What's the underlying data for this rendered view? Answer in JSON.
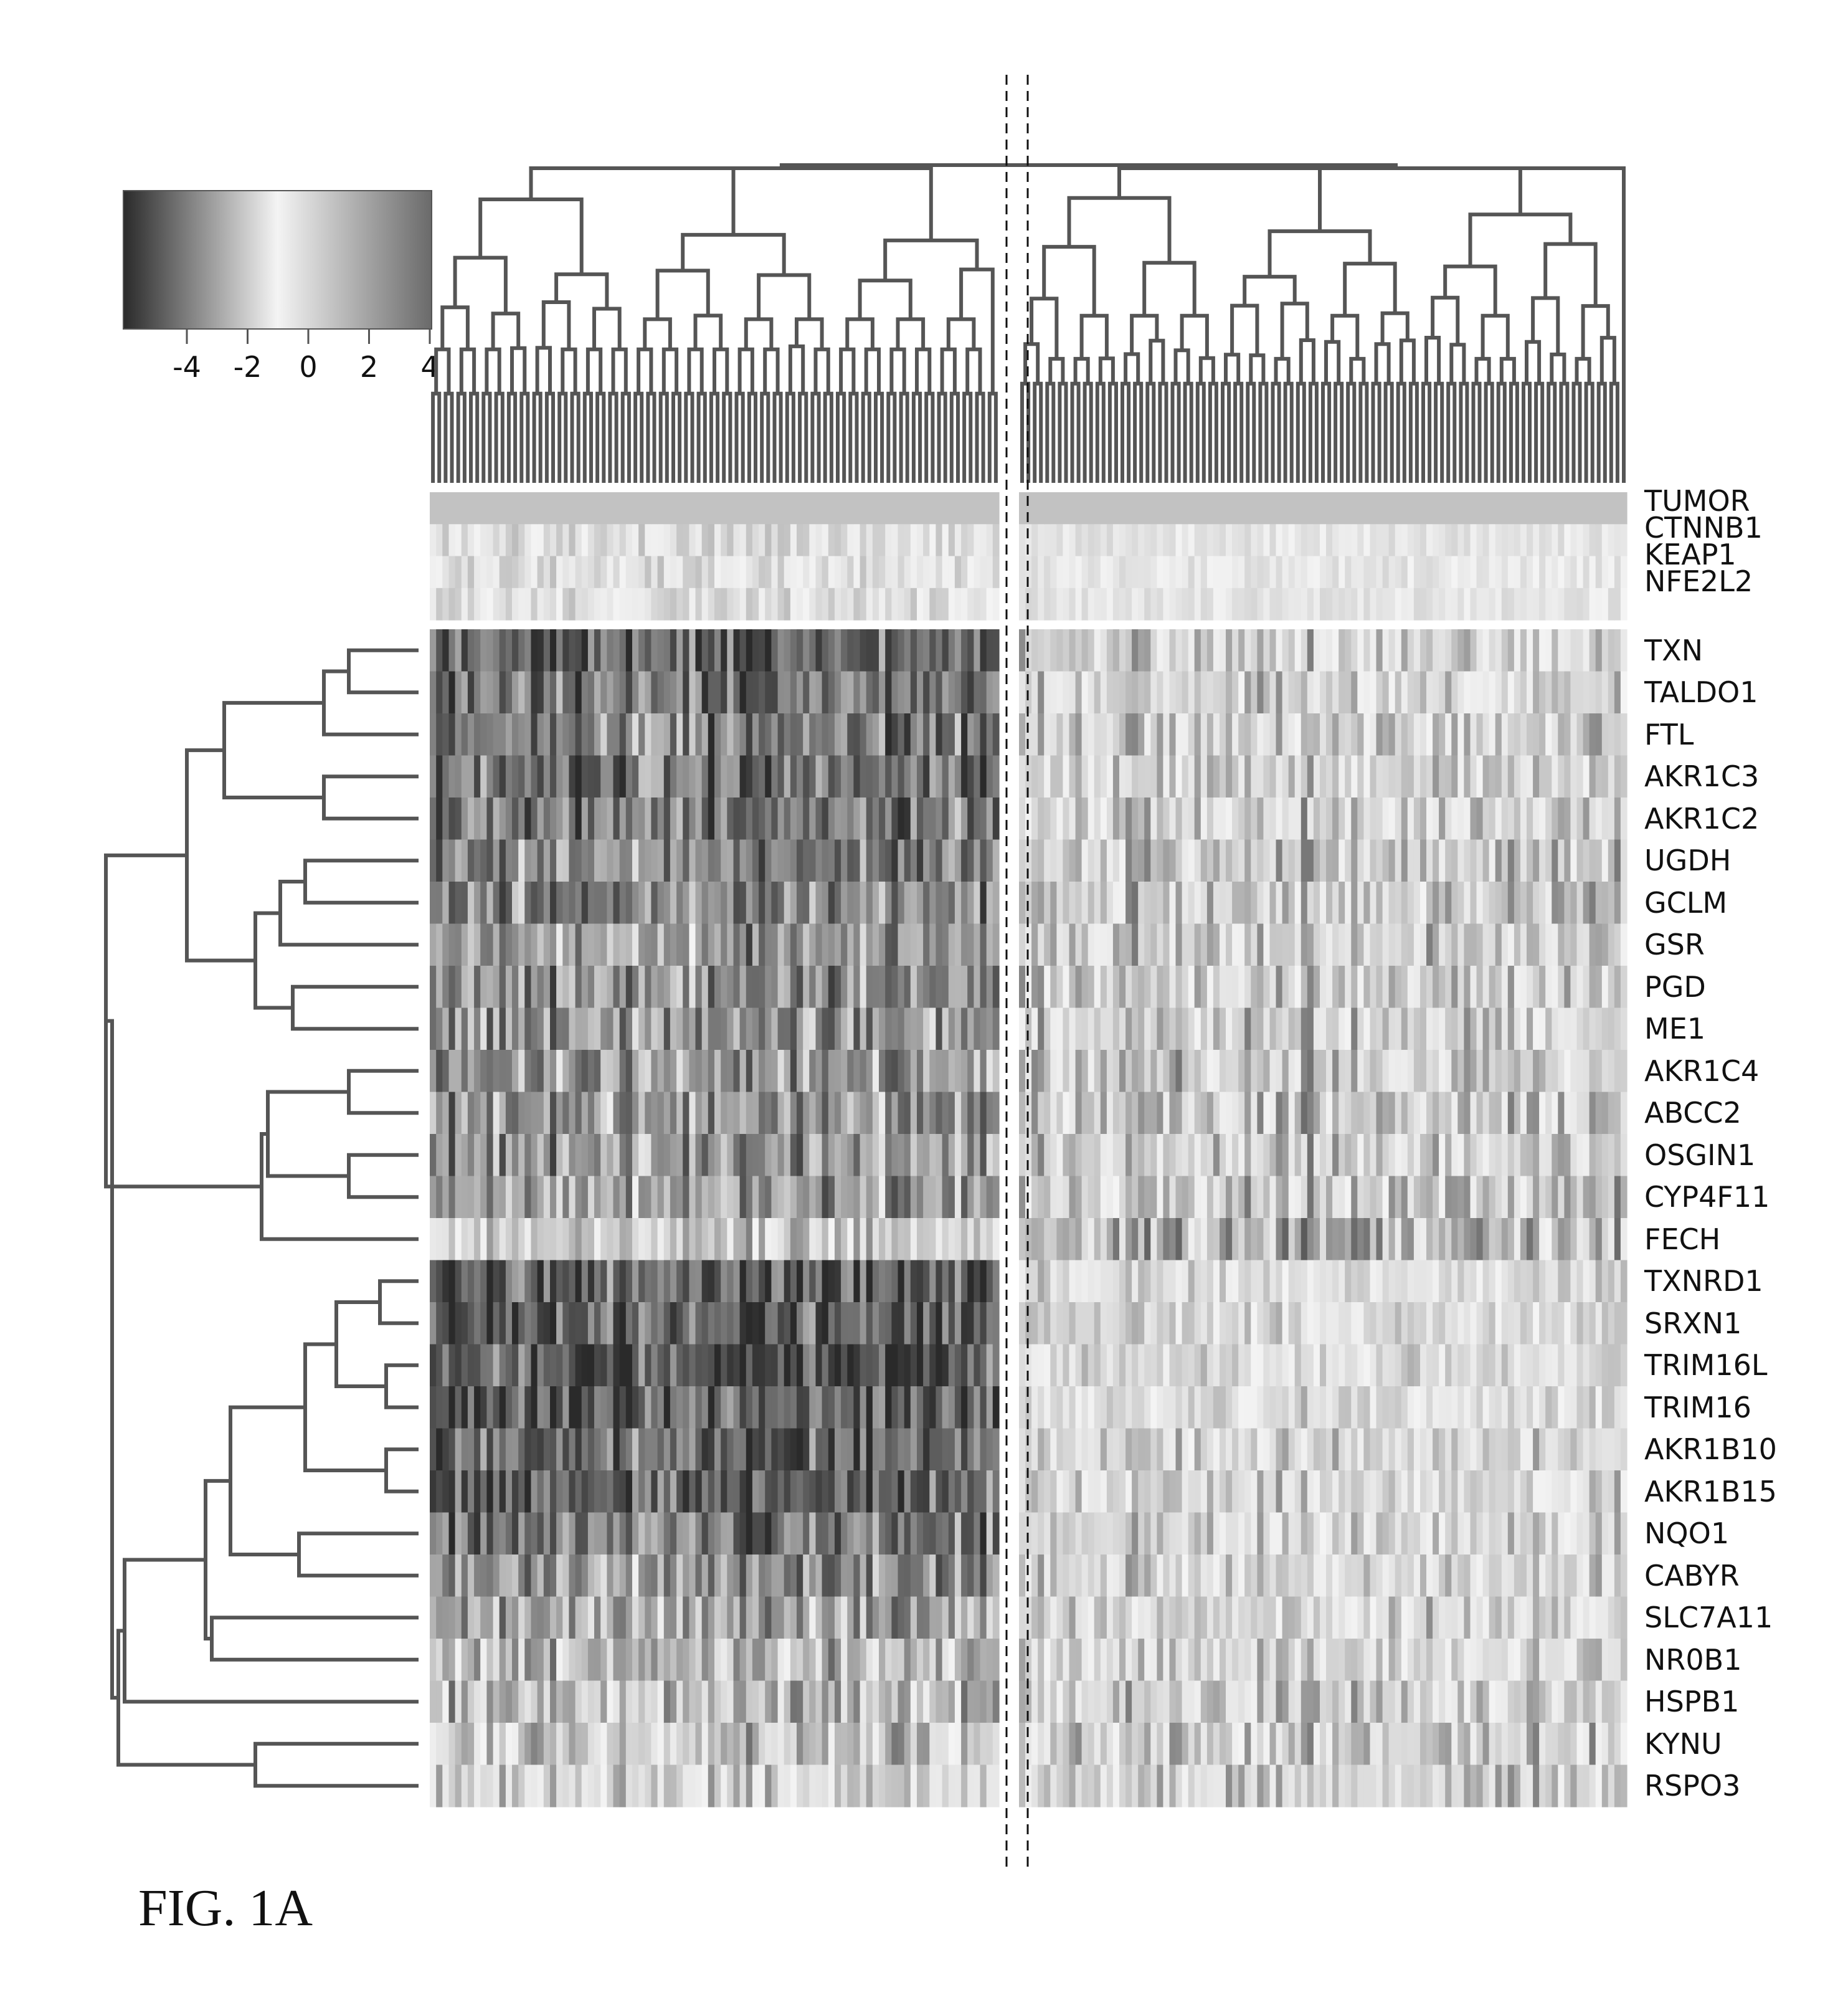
{
  "figure_label": "FIG. 1A",
  "chart_data": {
    "type": "heatmap",
    "title": "",
    "color_scale": {
      "ticks": [
        "-4",
        "-2",
        "0",
        "2",
        "4"
      ],
      "min": -4,
      "max": 4,
      "low_color": "#2a2a2a",
      "mid_color": "#f4f4f4",
      "high_color": "#6a6a6a"
    },
    "annotation_tracks": [
      "TUMOR",
      "CTNNB1",
      "KEAP1",
      "NFE2L2"
    ],
    "genes": [
      "TXN",
      "TALDO1",
      "FTL",
      "AKR1C3",
      "AKR1C2",
      "UGDH",
      "GCLM",
      "GSR",
      "PGD",
      "ME1",
      "AKR1C4",
      "ABCC2",
      "OSGIN1",
      "CYP4F11",
      "FECH",
      "TXNRD1",
      "SRXN1",
      "TRIM16L",
      "TRIM16",
      "AKR1B10",
      "AKR1B15",
      "NQO1",
      "CABYR",
      "SLC7A11",
      "NR0B1",
      "HSPB1",
      "KYNU",
      "RSPO3"
    ],
    "sample_clusters": [
      {
        "label": "",
        "n_samples": 90,
        "mean_level": [
          -2.8,
          -2.6,
          -2.4,
          -2.5,
          -2.5,
          -2.2,
          -2.1,
          -1.9,
          -2.0,
          -1.9,
          -1.8,
          -1.8,
          -1.9,
          -1.8,
          -0.6,
          -3.0,
          -3.0,
          -3.1,
          -3.1,
          -2.9,
          -2.8,
          -2.5,
          -2.0,
          -1.6,
          -1.2,
          -1.2,
          -0.8,
          -0.5
        ]
      },
      {
        "label": "",
        "n_samples": 97,
        "mean_level": [
          -0.5,
          -0.4,
          -0.5,
          -0.5,
          -0.6,
          -0.7,
          -0.7,
          -0.6,
          -0.7,
          -0.6,
          -0.8,
          -0.8,
          -0.7,
          -0.8,
          -1.3,
          0.2,
          0.3,
          0.4,
          0.3,
          -0.2,
          -0.3,
          -0.3,
          -0.3,
          -0.4,
          -0.2,
          -0.6,
          -0.7,
          -0.6
        ]
      }
    ],
    "value_range": [
      -4,
      4
    ],
    "divider": "dashed vertical lines between sample clusters",
    "row_dendrogram": true,
    "column_dendrogram": true,
    "legend_position": "top-left"
  }
}
